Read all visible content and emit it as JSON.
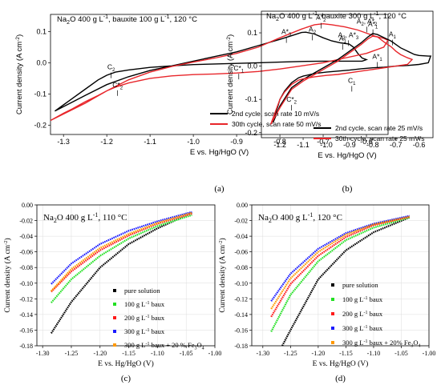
{
  "panels": [
    {
      "id": "a",
      "caption": "(a)",
      "title": "Na2O 400 g L-1, bauxite 100 g L-1, 120 °C",
      "title_parts": [
        "Na",
        "2",
        "O 400 g L",
        "-1",
        ", bauxite 100 g L",
        "-1",
        ", 120 °C"
      ],
      "xlabel": "E vs. Hg/HgO (V)",
      "ylabel": "Current density (A cm",
      "ylabel_sup": "-2",
      "ylabel_tail": ")",
      "font": "sans",
      "legend_position": "bottom-right",
      "xlim": [
        -1.33,
        -0.55
      ],
      "ylim": [
        -0.23,
        0.155
      ],
      "xticks": [
        -1.3,
        -1.2,
        -1.1,
        -1.0,
        -0.9,
        -0.8,
        -0.7,
        -0.6
      ],
      "xtick_labels": [
        "-1.3",
        "-1.2",
        "-1.1",
        "-1.0",
        "-0.9",
        "-0.8",
        "-0.7",
        "-0.6"
      ],
      "yticks": [
        -0.2,
        -0.1,
        0.0,
        0.1
      ],
      "ytick_labels": [
        "-0.2",
        "-0.1",
        "0.0",
        "0.1"
      ],
      "annotations": [
        {
          "label": "A*",
          "sub": "3",
          "sup": "",
          "x": -0.785,
          "y": 0.092
        },
        {
          "label": "A",
          "sub": "2",
          "sup": "",
          "x": -0.725,
          "y": 0.1
        },
        {
          "label": "A*",
          "sub": "2",
          "sup": "",
          "x": -0.705,
          "y": 0.138
        },
        {
          "label": "A",
          "sub": "1",
          "sup": "",
          "x": -0.655,
          "y": 0.07
        },
        {
          "label": "A*",
          "sub": "1",
          "sup": "",
          "x": -0.585,
          "y": 0.117
        },
        {
          "label": "C",
          "sub": "2",
          "sup": "",
          "x": -1.19,
          "y": -0.021
        },
        {
          "label": "C*",
          "sub": "1",
          "sup": "",
          "x": -0.895,
          "y": -0.025
        },
        {
          "label": "C*",
          "sub": "2",
          "sup": "",
          "x": -1.175,
          "y": -0.078
        }
      ],
      "series": [
        {
          "name": "2nd cycle, scan rate 10 mV/s",
          "color": "#000000",
          "x": [
            -1.32,
            -1.25,
            -1.2,
            -1.15,
            -1.1,
            -1.05,
            -1.0,
            -0.95,
            -0.9,
            -0.85,
            -0.8,
            -0.77,
            -0.75,
            -0.74,
            -0.72,
            -0.7,
            -0.68,
            -0.66,
            -0.64,
            -0.63,
            -0.62,
            -0.61,
            -0.6,
            -0.61,
            -0.65,
            -0.7,
            -0.75,
            -0.8,
            -0.85,
            -0.9,
            -0.95,
            -1.0,
            -1.05,
            -1.1,
            -1.15,
            -1.18,
            -1.2,
            -1.22,
            -1.25,
            -1.28,
            -1.3,
            -1.32
          ],
          "y": [
            -0.155,
            -0.105,
            -0.07,
            -0.045,
            -0.025,
            -0.01,
            0.005,
            0.02,
            0.035,
            0.055,
            0.075,
            0.088,
            0.097,
            0.098,
            0.092,
            0.08,
            0.07,
            0.064,
            0.06,
            0.05,
            0.03,
            0.015,
            0.01,
            0.005,
            0.005,
            0.005,
            0.004,
            0.002,
            0.0,
            -0.002,
            -0.004,
            -0.006,
            -0.01,
            -0.015,
            -0.023,
            -0.03,
            -0.04,
            -0.055,
            -0.085,
            -0.115,
            -0.135,
            -0.155
          ]
        },
        {
          "name": "30th cycle, scan rate 50 mV/s",
          "color": "#e8262b",
          "x": [
            -1.33,
            -1.25,
            -1.2,
            -1.15,
            -1.1,
            -1.05,
            -1.0,
            -0.95,
            -0.9,
            -0.85,
            -0.8,
            -0.75,
            -0.72,
            -0.7,
            -0.68,
            -0.65,
            -0.62,
            -0.6,
            -0.58,
            -0.56,
            -0.55,
            -0.56,
            -0.6,
            -0.65,
            -0.7,
            -0.75,
            -0.8,
            -0.85,
            -0.9,
            -0.95,
            -1.0,
            -1.05,
            -1.1,
            -1.15,
            -1.18,
            -1.2,
            -1.22,
            -1.25,
            -1.28,
            -1.3,
            -1.33
          ],
          "y": [
            -0.185,
            -0.13,
            -0.09,
            -0.055,
            -0.03,
            -0.012,
            0.002,
            0.015,
            0.03,
            0.05,
            0.08,
            0.108,
            0.122,
            0.125,
            0.122,
            0.115,
            0.105,
            0.095,
            0.085,
            0.078,
            0.072,
            0.05,
            0.03,
            0.015,
            0.0,
            -0.01,
            -0.02,
            -0.028,
            -0.033,
            -0.036,
            -0.038,
            -0.042,
            -0.05,
            -0.065,
            -0.078,
            -0.09,
            -0.105,
            -0.125,
            -0.148,
            -0.162,
            -0.185
          ]
        }
      ]
    },
    {
      "id": "b",
      "caption": "(b)",
      "title": "Na2O 400 g L-1, bauxite 300 g L-1, 120 °C",
      "title_parts": [
        "Na",
        "2",
        "O 400 g L",
        "-1",
        ", bauxite 300 g L",
        "-1",
        ", 120 °C"
      ],
      "xlabel": "E vs. Hg/HgO (V)",
      "ylabel": "Current density (A cm",
      "ylabel_sup": "-2",
      "ylabel_tail": ")",
      "font": "sans",
      "legend_position": "bottom-right",
      "xlim": [
        -1.28,
        -0.54
      ],
      "ylim": [
        -0.215,
        0.165
      ],
      "xticks": [
        -1.2,
        -1.1,
        -1.0,
        -0.9,
        -0.8,
        -0.7,
        -0.6
      ],
      "xtick_labels": [
        "-1.2",
        "-1.1",
        "-1.0",
        "-0.9",
        "-0.8",
        "-0.7",
        "-0.6"
      ],
      "yticks": [
        -0.2,
        -0.1,
        0.0,
        0.1
      ],
      "ytick_labels": [
        "-0.2",
        "-0.1",
        "0.0",
        "0.1"
      ],
      "annotations": [
        {
          "label": "A",
          "sub": "3",
          "sup": "",
          "x": -0.905,
          "y": 0.087,
          "suffix": ", A*",
          "suffix_sub": "3"
        },
        {
          "label": "A",
          "sub": "2",
          "sup": "",
          "x": -0.825,
          "y": 0.128,
          "suffix": ", A*",
          "suffix_sub": "2"
        },
        {
          "label": "A",
          "sub": "1",
          "sup": "",
          "x": -0.715,
          "y": 0.089
        },
        {
          "label": "A*",
          "sub": "1",
          "sup": "",
          "x": -0.78,
          "y": 0.022
        },
        {
          "label": "C",
          "sub": "1",
          "sup": "",
          "x": -0.89,
          "y": -0.05
        },
        {
          "label": "C*",
          "sub": "2",
          "sup": "",
          "x": -1.15,
          "y": -0.107
        }
      ],
      "series": [
        {
          "name": "2nd cycle, scan rate 25 mV/s",
          "color": "#000000",
          "x": [
            -1.23,
            -1.2,
            -1.15,
            -1.1,
            -1.05,
            -1.0,
            -0.95,
            -0.9,
            -0.85,
            -0.82,
            -0.8,
            -0.78,
            -0.75,
            -0.72,
            -0.7,
            -0.68,
            -0.65,
            -0.62,
            -0.6,
            -0.56,
            -0.55,
            -0.56,
            -0.6,
            -0.65,
            -0.7,
            -0.75,
            -0.8,
            -0.85,
            -0.9,
            -0.95,
            -1.0,
            -1.05,
            -1.1,
            -1.12,
            -1.15,
            -1.18,
            -1.2,
            -1.23
          ],
          "y": [
            -0.17,
            -0.12,
            -0.065,
            -0.04,
            -0.02,
            0.0,
            0.02,
            0.045,
            0.07,
            0.088,
            0.098,
            0.095,
            0.085,
            0.075,
            0.065,
            0.055,
            0.045,
            0.035,
            0.032,
            0.03,
            0.03,
            0.01,
            0.005,
            0.002,
            0.0,
            -0.003,
            -0.005,
            -0.008,
            -0.012,
            -0.015,
            -0.018,
            -0.022,
            -0.03,
            -0.035,
            -0.05,
            -0.075,
            -0.1,
            -0.17
          ]
        },
        {
          "name": "30th cycle, scan rate 25 mV/s",
          "color": "#e8262b",
          "x": [
            -1.24,
            -1.2,
            -1.15,
            -1.1,
            -1.05,
            -1.0,
            -0.95,
            -0.9,
            -0.85,
            -0.82,
            -0.8,
            -0.78,
            -0.75,
            -0.72,
            -0.7,
            -0.68,
            -0.65,
            -0.63,
            -0.65,
            -0.7,
            -0.75,
            -0.8,
            -0.85,
            -0.9,
            -0.95,
            -1.0,
            -1.05,
            -1.1,
            -1.12,
            -1.15,
            -1.18,
            -1.2,
            -1.24
          ],
          "y": [
            -0.175,
            -0.125,
            -0.07,
            -0.045,
            -0.025,
            -0.005,
            0.015,
            0.04,
            0.065,
            0.082,
            0.09,
            0.088,
            0.072,
            0.058,
            0.045,
            0.035,
            0.025,
            0.02,
            0.005,
            0.0,
            -0.005,
            -0.01,
            -0.015,
            -0.02,
            -0.025,
            -0.028,
            -0.032,
            -0.038,
            -0.042,
            -0.055,
            -0.078,
            -0.1,
            -0.175
          ]
        }
      ]
    },
    {
      "id": "c",
      "caption": "(c)",
      "title": "Na2O 400 g L-1, 110 °C",
      "title_parts": [
        "Na",
        "2",
        "O 400 g L",
        "-1",
        ", 110 °C",
        "",
        ""
      ],
      "xlabel": "E vs. Hg/HgO (V)",
      "ylabel": "Current density (A cm",
      "ylabel_sup": "-2",
      "ylabel_tail": ")",
      "font": "serif",
      "legend_position": "bottom-right",
      "xlim": [
        -1.31,
        -1.0
      ],
      "ylim": [
        -0.18,
        0.0
      ],
      "xticks": [
        -1.3,
        -1.25,
        -1.2,
        -1.15,
        -1.1,
        -1.05,
        -1.0
      ],
      "xtick_labels": [
        "-1.30",
        "-1.25",
        "-1.20",
        "-1.15",
        "-1.10",
        "-1.05",
        "-1.00"
      ],
      "yticks": [
        -0.18,
        -0.16,
        -0.14,
        -0.12,
        -0.1,
        -0.08,
        -0.06,
        -0.04,
        -0.02,
        0.0
      ],
      "ytick_labels": [
        "-0.18",
        "-0.16",
        "-0.14",
        "-0.12",
        "-0.10",
        "-0.08",
        "-0.06",
        "-0.04",
        "-0.02",
        "0.00"
      ],
      "annotations": [],
      "series": [
        {
          "name": "pure solution",
          "color": "#000000",
          "x": [
            -1.285,
            -1.25,
            -1.2,
            -1.15,
            -1.1,
            -1.04
          ],
          "y": [
            -0.164,
            -0.124,
            -0.08,
            -0.05,
            -0.03,
            -0.01
          ]
        },
        {
          "name": "100 g L-1 baux",
          "color": "#22e022",
          "x": [
            -1.285,
            -1.25,
            -1.2,
            -1.15,
            -1.1,
            -1.04
          ],
          "y": [
            -0.125,
            -0.095,
            -0.065,
            -0.043,
            -0.027,
            -0.013
          ]
        },
        {
          "name": "200 g L-1 baux",
          "color": "#ff1a1a",
          "x": [
            -1.285,
            -1.25,
            -1.2,
            -1.15,
            -1.1,
            -1.04
          ],
          "y": [
            -0.111,
            -0.085,
            -0.058,
            -0.039,
            -0.024,
            -0.011
          ]
        },
        {
          "name": "300 g L-1 baux",
          "color": "#1a1aff",
          "x": [
            -1.285,
            -1.25,
            -1.2,
            -1.15,
            -1.1,
            -1.04
          ],
          "y": [
            -0.101,
            -0.075,
            -0.05,
            -0.033,
            -0.021,
            -0.009
          ]
        },
        {
          "name": "300 g L-1 baux + 20 % Fe3O4",
          "color": "#ff9900",
          "x": [
            -1.285,
            -1.25,
            -1.2,
            -1.15,
            -1.1,
            -1.04
          ],
          "y": [
            -0.11,
            -0.082,
            -0.055,
            -0.037,
            -0.023,
            -0.01
          ]
        }
      ],
      "legend_labels": [
        {
          "text": "pure solution",
          "sup": "",
          "tail": "",
          "sub": "",
          "end": ""
        },
        {
          "text": "100 g L",
          "sup": "-1",
          "tail": " baux",
          "sub": "",
          "end": ""
        },
        {
          "text": "200 g L",
          "sup": "-1",
          "tail": " baux",
          "sub": "",
          "end": ""
        },
        {
          "text": "300 g L",
          "sup": "-1",
          "tail": " baux",
          "sub": "",
          "end": ""
        },
        {
          "text": "300 g L",
          "sup": "-1",
          "tail": " baux + 20 % Fe",
          "sub": "3",
          "end": "O",
          "sub2": "4"
        }
      ]
    },
    {
      "id": "d",
      "caption": "(d)",
      "title": "Na2O 400 g L-1, 120 °C",
      "title_parts": [
        "Na",
        "2",
        "O 400 g L",
        "-1",
        ", 120 °C",
        "",
        ""
      ],
      "xlabel": "E vs. Hg/HgO (V)",
      "ylabel": "Current density (A cm",
      "ylabel_sup": "-2",
      "ylabel_tail": ")",
      "font": "serif",
      "legend_position": "bottom-right",
      "xlim": [
        -1.32,
        -1.0
      ],
      "ylim": [
        -0.18,
        0.0
      ],
      "xticks": [
        -1.3,
        -1.25,
        -1.2,
        -1.15,
        -1.1,
        -1.05,
        -1.0
      ],
      "xtick_labels": [
        "-1.30",
        "-1.25",
        "-1.20",
        "-1.15",
        "-1.10",
        "-1.05",
        "-1.00"
      ],
      "yticks": [
        -0.18,
        -0.16,
        -0.14,
        -0.12,
        -0.1,
        -0.08,
        -0.06,
        -0.04,
        -0.02,
        0.0
      ],
      "ytick_labels": [
        "-0.18",
        "-0.16",
        "-0.14",
        "-0.12",
        "-0.10",
        "-0.08",
        "-0.06",
        "-0.04",
        "-0.02",
        "0.00"
      ],
      "annotations": [],
      "series": [
        {
          "name": "pure solution",
          "color": "#000000",
          "x": [
            -1.265,
            -1.25,
            -1.2,
            -1.15,
            -1.1,
            -1.035
          ],
          "y": [
            -0.18,
            -0.16,
            -0.095,
            -0.058,
            -0.035,
            -0.016
          ]
        },
        {
          "name": "100 g L-1 baux",
          "color": "#22e022",
          "x": [
            -1.285,
            -1.25,
            -1.2,
            -1.15,
            -1.1,
            -1.035
          ],
          "y": [
            -0.162,
            -0.115,
            -0.072,
            -0.045,
            -0.029,
            -0.016
          ]
        },
        {
          "name": "200 g L-1 baux",
          "color": "#ff1a1a",
          "x": [
            -1.285,
            -1.25,
            -1.2,
            -1.15,
            -1.1,
            -1.035
          ],
          "y": [
            -0.143,
            -0.101,
            -0.065,
            -0.041,
            -0.026,
            -0.015
          ]
        },
        {
          "name": "300 g L-1 baux",
          "color": "#1a1aff",
          "x": [
            -1.285,
            -1.25,
            -1.2,
            -1.15,
            -1.1,
            -1.035
          ],
          "y": [
            -0.123,
            -0.088,
            -0.056,
            -0.036,
            -0.024,
            -0.014
          ]
        },
        {
          "name": "300 g L-1 baux + 20% Fe3O4",
          "color": "#ff9900",
          "x": [
            -1.285,
            -1.25,
            -1.2,
            -1.15,
            -1.1,
            -1.035
          ],
          "y": [
            -0.133,
            -0.094,
            -0.06,
            -0.038,
            -0.025,
            -0.015
          ]
        }
      ],
      "legend_labels": [
        {
          "text": "pure solution",
          "sup": "",
          "tail": "",
          "sub": "",
          "end": ""
        },
        {
          "text": "100 g L",
          "sup": "-1",
          "tail": " baux",
          "sub": "",
          "end": ""
        },
        {
          "text": "200 g L",
          "sup": "-1",
          "tail": " baux",
          "sub": "",
          "end": ""
        },
        {
          "text": "300 g L",
          "sup": "-1",
          "tail": " baux",
          "sub": "",
          "end": ""
        },
        {
          "text": "300 g L",
          "sup": "-1",
          "tail": " baux + 20% Fe",
          "sub": "3",
          "end": "O",
          "sub2": "4"
        }
      ]
    }
  ]
}
